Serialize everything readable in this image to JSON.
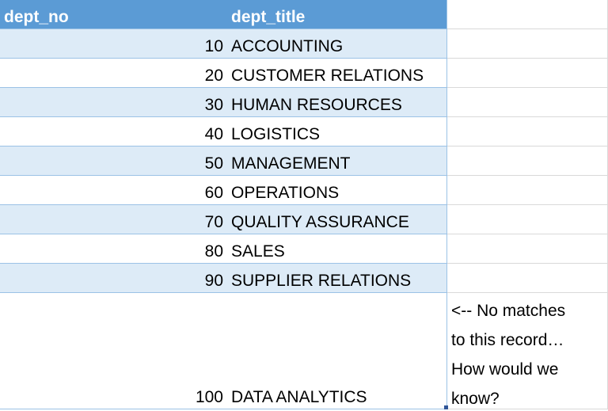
{
  "table": {
    "header": [
      "dept_no",
      "dept_title"
    ],
    "rows": [
      [
        10,
        "ACCOUNTING"
      ],
      [
        20,
        "CUSTOMER RELATIONS"
      ],
      [
        30,
        "HUMAN RESOURCES"
      ],
      [
        40,
        "LOGISTICS"
      ],
      [
        50,
        "MANAGEMENT"
      ],
      [
        60,
        "OPERATIONS"
      ],
      [
        70,
        "QUALITY ASSURANCE"
      ],
      [
        80,
        "SALES"
      ],
      [
        90,
        "SUPPLIER RELATIONS"
      ],
      [
        100,
        "DATA ANALYTICS"
      ]
    ]
  },
  "note": [
    "<-- No matches",
    "to this record…",
    "How would we",
    "know?"
  ]
}
